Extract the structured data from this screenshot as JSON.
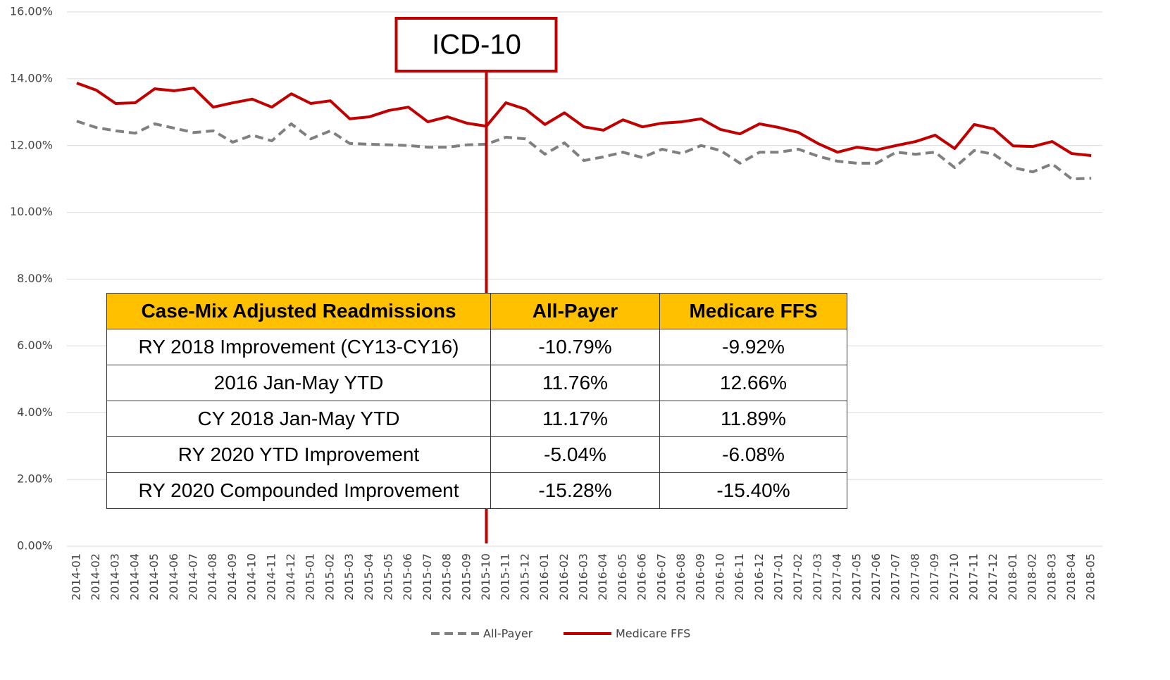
{
  "chart_data": {
    "type": "line",
    "categories": [
      "2014-01",
      "2014-02",
      "2014-03",
      "2014-04",
      "2014-05",
      "2014-06",
      "2014-07",
      "2014-08",
      "2014-09",
      "2014-10",
      "2014-11",
      "2014-12",
      "2015-01",
      "2015-02",
      "2015-03",
      "2015-04",
      "2015-05",
      "2015-06",
      "2015-07",
      "2015-08",
      "2015-09",
      "2015-10",
      "2015-11",
      "2015-12",
      "2016-01",
      "2016-02",
      "2016-03",
      "2016-04",
      "2016-05",
      "2016-06",
      "2016-07",
      "2016-08",
      "2016-09",
      "2016-10",
      "2016-11",
      "2016-12",
      "2017-01",
      "2017-02",
      "2017-03",
      "2017-04",
      "2017-05",
      "2017-06",
      "2017-07",
      "2017-08",
      "2017-09",
      "2017-10",
      "2017-11",
      "2017-12",
      "2018-01",
      "2018-02",
      "2018-03",
      "2018-04",
      "2018-05"
    ],
    "series": [
      {
        "name": "All-Payer",
        "color": "#808080",
        "dashed": true,
        "values": [
          12.73,
          12.54,
          12.44,
          12.37,
          12.65,
          12.52,
          12.39,
          12.44,
          12.1,
          12.31,
          12.14,
          12.65,
          12.2,
          12.44,
          12.06,
          12.04,
          12.02,
          12.0,
          11.95,
          11.95,
          12.02,
          12.04,
          12.25,
          12.2,
          11.74,
          12.08,
          11.55,
          11.66,
          11.8,
          11.64,
          11.89,
          11.76,
          12.0,
          11.85,
          11.47,
          11.8,
          11.8,
          11.89,
          11.68,
          11.53,
          11.47,
          11.47,
          11.8,
          11.74,
          11.8,
          11.34,
          11.85,
          11.74,
          11.34,
          11.21,
          11.45,
          11.0,
          11.02
        ]
      },
      {
        "name": "Medicare FFS",
        "color": "#c00000",
        "dashed": false,
        "values": [
          13.87,
          13.66,
          13.26,
          13.28,
          13.7,
          13.64,
          13.72,
          13.15,
          13.28,
          13.39,
          13.15,
          13.55,
          13.26,
          13.34,
          12.8,
          12.86,
          13.05,
          13.15,
          12.71,
          12.86,
          12.67,
          12.58,
          13.28,
          13.09,
          12.63,
          12.98,
          12.56,
          12.46,
          12.77,
          12.56,
          12.67,
          12.71,
          12.8,
          12.48,
          12.35,
          12.65,
          12.54,
          12.39,
          12.06,
          11.8,
          11.95,
          11.87,
          12.0,
          12.12,
          12.31,
          11.91,
          12.63,
          12.5,
          11.99,
          11.97,
          12.12,
          11.76,
          11.7
        ]
      }
    ],
    "ylim": [
      0,
      16
    ],
    "yticks": [
      {
        "value": 0,
        "label": "0.00%"
      },
      {
        "value": 2,
        "label": "2.00%"
      },
      {
        "value": 4,
        "label": "4.00%"
      },
      {
        "value": 6,
        "label": "6.00%"
      },
      {
        "value": 8,
        "label": "8.00%"
      },
      {
        "value": 10,
        "label": "10.00%"
      },
      {
        "value": 12,
        "label": "12.00%"
      },
      {
        "value": 14,
        "label": "14.00%"
      },
      {
        "value": 16,
        "label": "16.00%"
      }
    ],
    "grid": true,
    "legend": "bottom",
    "annotations": [
      {
        "text": "ICD-10",
        "x": "2015-10",
        "color": "#c00000"
      }
    ]
  },
  "table": {
    "header": [
      "Case-Mix Adjusted Readmissions",
      "All-Payer",
      "Medicare FFS"
    ],
    "header_color": "#ffc000",
    "rows": [
      [
        "RY 2018 Improvement (CY13-CY16)",
        "-10.79%",
        "-9.92%"
      ],
      [
        "2016 Jan-May YTD",
        "11.76%",
        "12.66%"
      ],
      [
        "CY 2018 Jan-May YTD",
        "11.17%",
        "11.89%"
      ],
      [
        "RY 2020 YTD Improvement",
        "-5.04%",
        "-6.08%"
      ],
      [
        "RY 2020 Compounded Improvement",
        "-15.28%",
        "-15.40%"
      ]
    ]
  }
}
